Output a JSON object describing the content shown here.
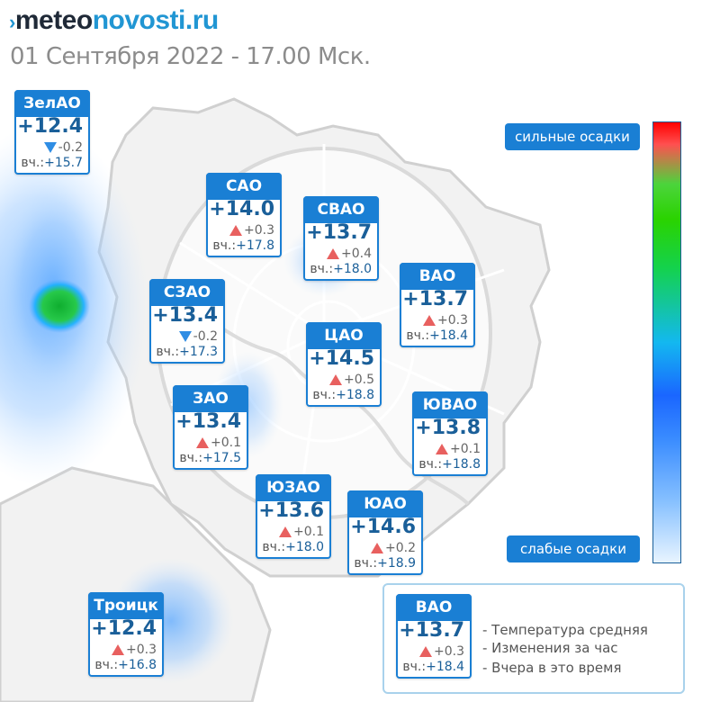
{
  "header": {
    "logo_part1": "meteo",
    "logo_part2": "novosti.ru",
    "subtitle": "01 Сентября 2022 - 17.00 Мск."
  },
  "colors": {
    "card_header": "#1a7fd4",
    "temperature": "#1a5f99",
    "rise_arrow": "#e8605f",
    "fall_arrow": "#2f8de4"
  },
  "legend": {
    "strong": "сильные осадки",
    "weak": "слабые осадки"
  },
  "districts": [
    {
      "name": "ЗелАО",
      "temp": "+12.4",
      "trend": "down",
      "change": "-0.2",
      "yesterday": "+15.7"
    },
    {
      "name": "САО",
      "temp": "+14.0",
      "trend": "up",
      "change": "+0.3",
      "yesterday": "+17.8"
    },
    {
      "name": "СВАО",
      "temp": "+13.7",
      "trend": "up",
      "change": "+0.4",
      "yesterday": "+18.0"
    },
    {
      "name": "ВАО",
      "temp": "+13.7",
      "trend": "up",
      "change": "+0.3",
      "yesterday": "+18.4"
    },
    {
      "name": "СЗАО",
      "temp": "+13.4",
      "trend": "down",
      "change": "-0.2",
      "yesterday": "+17.3"
    },
    {
      "name": "ЦАО",
      "temp": "+14.5",
      "trend": "up",
      "change": "+0.5",
      "yesterday": "+18.8"
    },
    {
      "name": "ЗАО",
      "temp": "+13.4",
      "trend": "up",
      "change": "+0.1",
      "yesterday": "+17.5"
    },
    {
      "name": "ЮВАО",
      "temp": "+13.8",
      "trend": "up",
      "change": "+0.1",
      "yesterday": "+18.8"
    },
    {
      "name": "ЮЗАО",
      "temp": "+13.6",
      "trend": "up",
      "change": "+0.1",
      "yesterday": "+18.0"
    },
    {
      "name": "ЮАО",
      "temp": "+14.6",
      "trend": "up",
      "change": "+0.2",
      "yesterday": "+18.9"
    },
    {
      "name": "Троицк",
      "temp": "+12.4",
      "trend": "up",
      "change": "+0.3",
      "yesterday": "+16.8"
    }
  ],
  "yesterday_prefix": "вч.:",
  "key": {
    "sample": {
      "name": "ВАО",
      "temp": "+13.7",
      "trend": "up",
      "change": "+0.3",
      "yesterday": "+18.4"
    },
    "desc_temp": "- Температура средняя",
    "desc_change": "- Изменения за час",
    "desc_yesterday": "- Вчера в это время"
  }
}
